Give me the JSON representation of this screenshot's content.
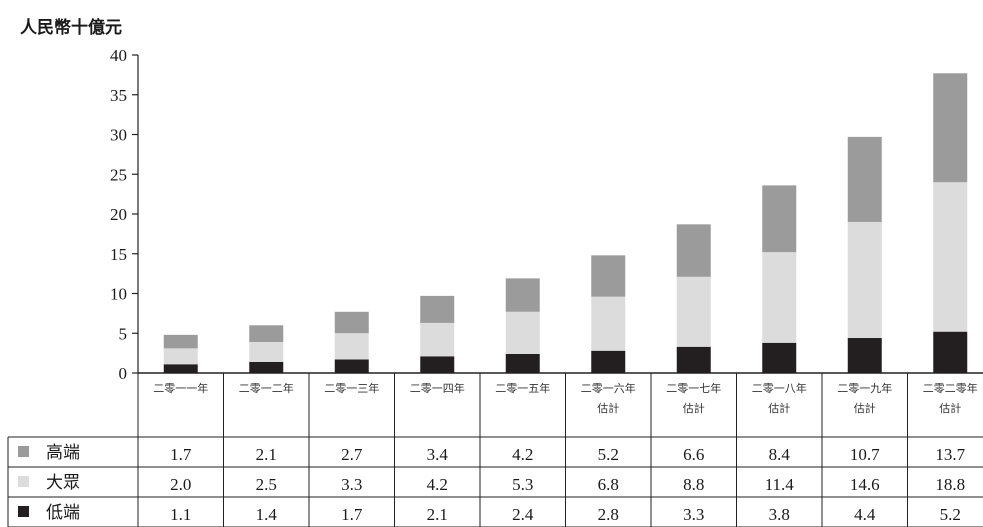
{
  "chart_data": {
    "type": "bar",
    "stacked": true,
    "unit_label": "人民幣十億元",
    "ylim": [
      0,
      40
    ],
    "yticks": [
      0,
      5,
      10,
      15,
      20,
      25,
      30,
      35,
      40
    ],
    "categories": [
      [
        "二零一一年"
      ],
      [
        "二零一二年"
      ],
      [
        "二零一三年"
      ],
      [
        "二零一四年"
      ],
      [
        "二零一五年"
      ],
      [
        "二零一六年",
        "估計"
      ],
      [
        "二零一七年",
        "估計"
      ],
      [
        "二零一八年",
        "估計"
      ],
      [
        "二零一九年",
        "估計"
      ],
      [
        "二零二零年",
        "估計"
      ]
    ],
    "series": [
      {
        "name": "低端",
        "color": "#231f20",
        "values": [
          1.1,
          1.4,
          1.7,
          2.1,
          2.4,
          2.8,
          3.3,
          3.8,
          4.4,
          5.2
        ],
        "labels": [
          "1.1",
          "1.4",
          "1.7",
          "2.1",
          "2.4",
          "2.8",
          "3.3",
          "3.8",
          "4.4",
          "5.2"
        ]
      },
      {
        "name": "大眾",
        "color": "#dcdcdc",
        "values": [
          2.0,
          2.5,
          3.3,
          4.2,
          5.3,
          6.8,
          8.8,
          11.4,
          14.6,
          18.8
        ],
        "labels": [
          "2.0",
          "2.5",
          "3.3",
          "4.2",
          "5.3",
          "6.8",
          "8.8",
          "11.4",
          "14.6",
          "18.8"
        ]
      },
      {
        "name": "高端",
        "color": "#9b9b9b",
        "values": [
          1.7,
          2.1,
          2.7,
          3.4,
          4.2,
          5.2,
          6.6,
          8.4,
          10.7,
          13.7
        ],
        "labels": [
          "1.7",
          "2.1",
          "2.7",
          "3.4",
          "4.2",
          "5.2",
          "6.6",
          "8.4",
          "10.7",
          "13.7"
        ]
      }
    ],
    "table_row_order": [
      "高端",
      "大眾",
      "低端"
    ],
    "grid": false,
    "legend": "table-below"
  }
}
